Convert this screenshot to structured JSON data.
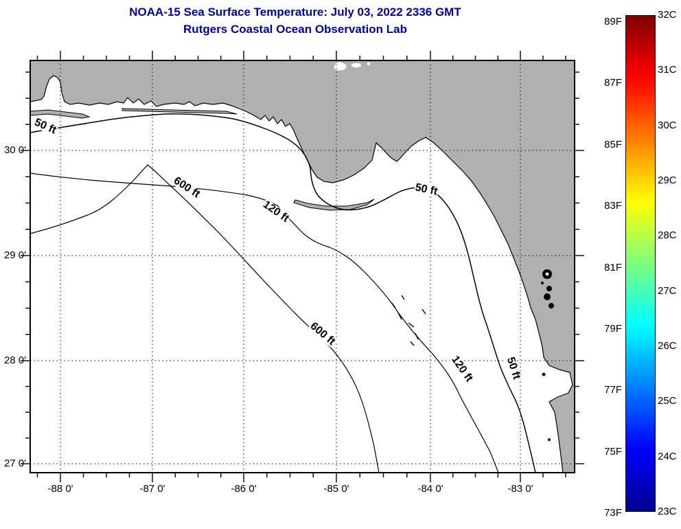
{
  "figure": {
    "title_line1": "NOAA-15 Sea Surface Temperature:  July 03, 2022 2336 GMT",
    "title_line2": "Rutgers Coastal Ocean Observation Lab"
  },
  "map": {
    "x_tick_labels": [
      "-88 0'",
      "-87 0'",
      "-86 0'",
      "-85 0'",
      "-84 0'",
      "-83 0'"
    ],
    "y_tick_labels": [
      "30 0'",
      "29 0'",
      "28 0'",
      "27 0'"
    ],
    "contour_labels": [
      "50 ft",
      "600 ft",
      "120 ft",
      "50 ft",
      "600 ft",
      "120 ft",
      "50 ft"
    ],
    "depth_contours_ft": [
      50,
      120,
      600
    ],
    "lon_range_deg": [
      -88.33,
      -82.41
    ],
    "lat_range_deg": [
      26.9,
      30.86
    ]
  },
  "colorbar": {
    "fahrenheit_labels": [
      "89F",
      "87F",
      "85F",
      "83F",
      "81F",
      "79F",
      "77F",
      "75F",
      "73F"
    ],
    "celsius_labels": [
      "32C",
      "31C",
      "30C",
      "29C",
      "28C",
      "27C",
      "26C",
      "25C",
      "24C",
      "23C"
    ],
    "min_c": 23,
    "max_c": 32,
    "min_f": 73,
    "max_f": 89
  },
  "colors": {
    "title": "#000099",
    "land": "#b0b0b0",
    "sea": "#ffffff",
    "coast_line": "#000000",
    "jet_low": "#00008f",
    "jet_high": "#7f0000"
  }
}
